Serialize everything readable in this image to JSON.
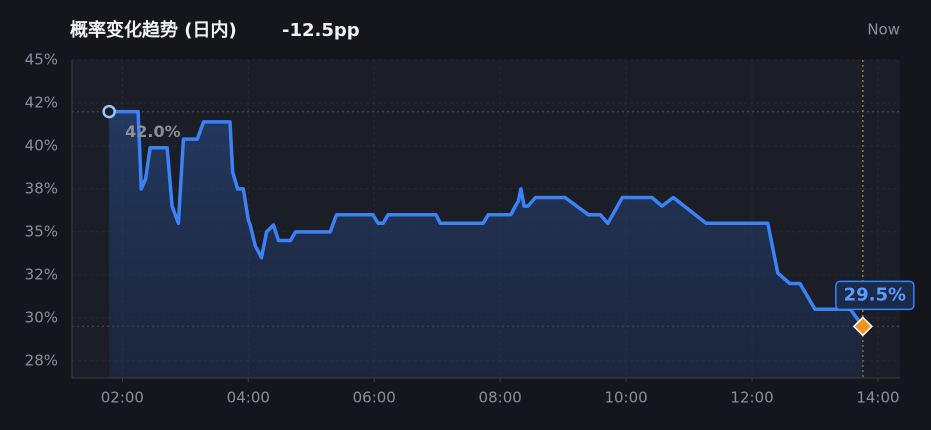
{
  "chart_data": {
    "type": "line",
    "title": "概率变化趋势 (日内)",
    "change": "-12.5pp",
    "now_label": "Now",
    "color": "#3b82f6",
    "grid": true,
    "x": [
      1.79,
      2.25,
      2.3,
      2.37,
      2.44,
      2.71,
      2.79,
      2.89,
      2.97,
      3.19,
      3.29,
      3.71,
      3.75,
      3.83,
      3.92,
      4.0,
      4.03,
      4.11,
      4.21,
      4.29,
      4.4,
      4.48,
      4.67,
      4.75,
      5.3,
      5.4,
      5.98,
      6.06,
      6.14,
      6.22,
      6.98,
      7.05,
      7.73,
      7.81,
      8.17,
      8.24,
      8.29,
      8.33,
      8.38,
      8.44,
      8.56,
      9.03,
      9.4,
      9.59,
      9.71,
      9.94,
      10.41,
      10.57,
      10.75,
      11.27,
      12.25,
      12.41,
      12.6,
      12.76,
      13.0,
      13.56,
      13.76
    ],
    "values": [
      42.0,
      42.0,
      37.5,
      38.1,
      39.9,
      39.9,
      36.5,
      35.5,
      40.4,
      40.4,
      41.4,
      41.4,
      38.5,
      37.5,
      37.5,
      35.7,
      35.4,
      34.2,
      33.5,
      35.0,
      35.4,
      34.5,
      34.5,
      35.0,
      35.0,
      36.0,
      36.0,
      35.5,
      35.5,
      36.0,
      36.0,
      35.5,
      35.5,
      36.0,
      36.0,
      36.5,
      36.8,
      37.5,
      36.5,
      36.5,
      37.0,
      37.0,
      36.0,
      36.0,
      35.5,
      37.0,
      37.0,
      36.5,
      37.0,
      35.5,
      35.5,
      32.6,
      32.0,
      32.0,
      30.5,
      30.5,
      29.5
    ],
    "markers": [
      {
        "x": 1.79,
        "y": 42.0,
        "label": "42.0%"
      },
      {
        "x": 13.76,
        "y": 29.5,
        "label": "29.5%"
      }
    ],
    "xlim": [
      1.2,
      14.35
    ],
    "xticks": [
      {
        "value": 2,
        "label": "02:00"
      },
      {
        "value": 4,
        "label": "04:00"
      },
      {
        "value": 6,
        "label": "06:00"
      },
      {
        "value": 8,
        "label": "08:00"
      },
      {
        "value": 10,
        "label": "10:00"
      },
      {
        "value": 12,
        "label": "12:00"
      },
      {
        "value": 14,
        "label": "14:00"
      }
    ],
    "ylim": [
      26.5,
      45
    ],
    "yticks": [
      {
        "value": 27.5,
        "label": "28%"
      },
      {
        "value": 30,
        "label": "30%"
      },
      {
        "value": 32.5,
        "label": "32%"
      },
      {
        "value": 35,
        "label": "35%"
      },
      {
        "value": 37.5,
        "label": "38%"
      },
      {
        "value": 40,
        "label": "40%"
      },
      {
        "value": 42.5,
        "label": "42%"
      },
      {
        "value": 45,
        "label": "45%"
      }
    ]
  }
}
